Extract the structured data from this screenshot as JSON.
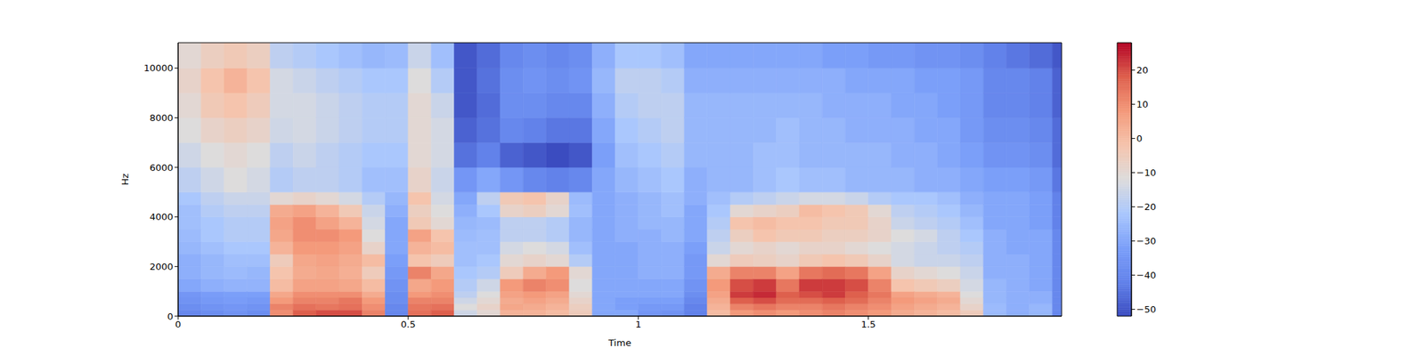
{
  "chart_data": {
    "type": "heatmap",
    "x_label": "Time",
    "y_label": "Hz",
    "xlim": [
      0,
      1.92
    ],
    "ylim": [
      0,
      11025
    ],
    "xticks": [
      0,
      0.5,
      1,
      1.5
    ],
    "yticks": [
      0,
      2000,
      4000,
      6000,
      8000,
      10000
    ],
    "x_edges": [
      0,
      0.05,
      0.1,
      0.15,
      0.2,
      0.25,
      0.3,
      0.35,
      0.4,
      0.45,
      0.5,
      0.55,
      0.6,
      0.65,
      0.7,
      0.75,
      0.8,
      0.85,
      0.9,
      0.95,
      1,
      1.05,
      1.1,
      1.15,
      1.2,
      1.25,
      1.3,
      1.35,
      1.4,
      1.45,
      1.5,
      1.55,
      1.6,
      1.65,
      1.7,
      1.75,
      1.8,
      1.85,
      1.9,
      1.92
    ],
    "y_edges": [
      0,
      250,
      500,
      750,
      1000,
      1500,
      2000,
      2500,
      3000,
      3500,
      4000,
      4500,
      5000,
      6000,
      7000,
      8000,
      9000,
      10000,
      11025
    ],
    "values": [
      [
        -40,
        -38,
        -36,
        -35,
        -30,
        -28,
        -28,
        -26,
        -25,
        -24,
        -24,
        -22,
        -18,
        -15,
        -12,
        -10,
        -8,
        -10
      ],
      [
        -38,
        -36,
        -34,
        -33,
        -28,
        -26,
        -26,
        -24,
        -22,
        -22,
        -20,
        -18,
        -15,
        -12,
        -8,
        -4,
        -2,
        -6
      ],
      [
        -36,
        -35,
        -33,
        -32,
        -27,
        -25,
        -24,
        -22,
        -20,
        -20,
        -18,
        -16,
        -12,
        -10,
        -6,
        -2,
        2,
        -4
      ],
      [
        -38,
        -36,
        -34,
        -32,
        -27,
        -26,
        -24,
        -22,
        -20,
        -20,
        -18,
        -16,
        -14,
        -12,
        -8,
        -5,
        -2,
        -6
      ],
      [
        10,
        12,
        8,
        5,
        0,
        -2,
        -5,
        2,
        5,
        6,
        4,
        -10,
        -20,
        -18,
        -15,
        -14,
        -14,
        -18
      ],
      [
        18,
        15,
        12,
        10,
        6,
        4,
        5,
        8,
        10,
        10,
        6,
        -8,
        -18,
        -16,
        -14,
        -14,
        -16,
        -20
      ],
      [
        20,
        14,
        12,
        10,
        6,
        5,
        6,
        8,
        10,
        6,
        2,
        -10,
        -18,
        -18,
        -16,
        -16,
        -18,
        -22
      ],
      [
        20,
        15,
        14,
        10,
        5,
        3,
        4,
        6,
        8,
        2,
        -4,
        -14,
        -20,
        -20,
        -18,
        -18,
        -20,
        -24
      ],
      [
        12,
        10,
        8,
        4,
        0,
        -5,
        0,
        -8,
        -12,
        -14,
        -16,
        -20,
        -24,
        -22,
        -20,
        -20,
        -22,
        -26
      ],
      [
        -40,
        -40,
        -38,
        -38,
        -36,
        -34,
        -32,
        -30,
        -30,
        -30,
        -28,
        -26,
        -24,
        -22,
        -20,
        -20,
        -22,
        -25
      ],
      [
        15,
        14,
        12,
        8,
        5,
        12,
        -2,
        2,
        6,
        -4,
        -6,
        -2,
        -8,
        -10,
        -10,
        -10,
        -12,
        -16
      ],
      [
        18,
        15,
        12,
        10,
        8,
        5,
        -5,
        0,
        -2,
        -10,
        -12,
        -14,
        -16,
        -14,
        -14,
        -16,
        -20,
        -24
      ],
      [
        -15,
        -12,
        -15,
        -18,
        -20,
        -22,
        -24,
        -24,
        -25,
        -26,
        -28,
        -30,
        -35,
        -45,
        -48,
        -50,
        -50,
        -50
      ],
      [
        -10,
        -8,
        -10,
        -12,
        -15,
        -20,
        -22,
        -24,
        -24,
        -25,
        -22,
        -18,
        -30,
        -42,
        -45,
        -46,
        -45,
        -46
      ],
      [
        2,
        5,
        4,
        6,
        8,
        -5,
        -10,
        -14,
        -18,
        -18,
        -8,
        -4,
        -35,
        -48,
        -40,
        -38,
        -38,
        -40
      ],
      [
        2,
        4,
        6,
        8,
        12,
        4,
        -8,
        -12,
        -18,
        -18,
        -6,
        -2,
        -40,
        -50,
        -42,
        -38,
        -36,
        -38
      ],
      [
        0,
        2,
        4,
        6,
        10,
        8,
        -10,
        -14,
        -20,
        -20,
        -10,
        -8,
        -42,
        -52,
        -44,
        -40,
        -38,
        -40
      ],
      [
        -5,
        -6,
        -8,
        -10,
        -12,
        -10,
        -20,
        -24,
        -26,
        -26,
        -24,
        -25,
        -40,
        -50,
        -44,
        -40,
        -36,
        -38
      ],
      [
        -30,
        -30,
        -30,
        -30,
        -30,
        -30,
        -30,
        -30,
        -30,
        -30,
        -30,
        -30,
        -30,
        -32,
        -30,
        -28,
        -26,
        -28
      ],
      [
        -30,
        -32,
        -32,
        -30,
        -30,
        -30,
        -30,
        -30,
        -28,
        -28,
        -28,
        -28,
        -26,
        -24,
        -22,
        -20,
        -18,
        -22
      ],
      [
        -35,
        -34,
        -32,
        -30,
        -30,
        -28,
        -28,
        -28,
        -28,
        -26,
        -26,
        -26,
        -24,
        -22,
        -20,
        -18,
        -18,
        -22
      ],
      [
        -36,
        -34,
        -32,
        -30,
        -30,
        -28,
        -28,
        -28,
        -26,
        -26,
        -24,
        -24,
        -22,
        -20,
        -18,
        -18,
        -20,
        -24
      ],
      [
        -42,
        -42,
        -40,
        -38,
        -36,
        -34,
        -34,
        -32,
        -30,
        -30,
        -30,
        -28,
        -28,
        -26,
        -26,
        -26,
        -28,
        -30
      ],
      [
        0,
        2,
        4,
        6,
        8,
        4,
        -10,
        -16,
        -18,
        -20,
        -22,
        -24,
        -26,
        -26,
        -26,
        -26,
        -28,
        -30
      ],
      [
        8,
        12,
        18,
        22,
        20,
        12,
        -5,
        -10,
        -6,
        -2,
        -10,
        -20,
        -26,
        -26,
        -26,
        -26,
        -28,
        -30
      ],
      [
        10,
        14,
        20,
        24,
        22,
        12,
        -6,
        -8,
        -2,
        0,
        -8,
        -18,
        -24,
        -24,
        -26,
        -26,
        -28,
        -30
      ],
      [
        8,
        12,
        16,
        18,
        14,
        6,
        -8,
        -10,
        -4,
        -2,
        -6,
        -16,
        -22,
        -24,
        -24,
        -26,
        -28,
        -30
      ],
      [
        10,
        12,
        16,
        20,
        22,
        14,
        -4,
        -8,
        -4,
        -2,
        0,
        -14,
        -24,
        -26,
        -26,
        -26,
        -28,
        -30
      ],
      [
        12,
        14,
        18,
        22,
        22,
        16,
        -2,
        -8,
        -6,
        -4,
        -2,
        -14,
        -24,
        -26,
        -26,
        -28,
        -28,
        -32
      ],
      [
        10,
        12,
        16,
        18,
        20,
        14,
        -4,
        -10,
        -6,
        -4,
        -4,
        -16,
        -26,
        -26,
        -28,
        -28,
        -30,
        -32
      ],
      [
        8,
        10,
        12,
        14,
        12,
        6,
        -8,
        -12,
        -8,
        -8,
        -10,
        -20,
        -26,
        -26,
        -28,
        -28,
        -30,
        -34
      ],
      [
        4,
        6,
        8,
        6,
        -2,
        -8,
        -14,
        -14,
        -12,
        -16,
        -18,
        -22,
        -26,
        -28,
        -28,
        -30,
        -30,
        -34
      ],
      [
        2,
        4,
        6,
        4,
        -4,
        -10,
        -16,
        -16,
        -14,
        -18,
        -20,
        -22,
        -28,
        -28,
        -30,
        -30,
        -32,
        -36
      ],
      [
        0,
        2,
        4,
        2,
        -6,
        -12,
        -16,
        -18,
        -18,
        -20,
        -22,
        -24,
        -28,
        -30,
        -30,
        -32,
        -32,
        -36
      ],
      [
        -5,
        -8,
        -10,
        -12,
        -14,
        -16,
        -18,
        -20,
        -22,
        -24,
        -26,
        -28,
        -30,
        -32,
        -34,
        -34,
        -34,
        -38
      ],
      [
        -25,
        -25,
        -26,
        -26,
        -26,
        -28,
        -28,
        -28,
        -28,
        -30,
        -30,
        -30,
        -32,
        -36,
        -38,
        -40,
        -40,
        -42
      ],
      [
        -28,
        -28,
        -28,
        -28,
        -28,
        -28,
        -28,
        -30,
        -30,
        -30,
        -30,
        -30,
        -32,
        -36,
        -38,
        -40,
        -40,
        -44
      ],
      [
        -26,
        -26,
        -28,
        -28,
        -30,
        -30,
        -30,
        -30,
        -30,
        -32,
        -32,
        -32,
        -34,
        -38,
        -40,
        -42,
        -42,
        -46
      ],
      [
        -40,
        -40,
        -40,
        -40,
        -40,
        -40,
        -40,
        -40,
        -40,
        -42,
        -42,
        -42,
        -44,
        -46,
        -46,
        -48,
        -48,
        -50
      ]
    ],
    "colorbar": {
      "range": [
        -52,
        28
      ],
      "ticks": [
        {
          "value": -50,
          "label": "−50"
        },
        {
          "value": -40,
          "label": "−40"
        },
        {
          "value": -30,
          "label": "−30"
        },
        {
          "value": -20,
          "label": "−20"
        },
        {
          "value": -10,
          "label": "−10"
        },
        0,
        10,
        20
      ]
    }
  }
}
